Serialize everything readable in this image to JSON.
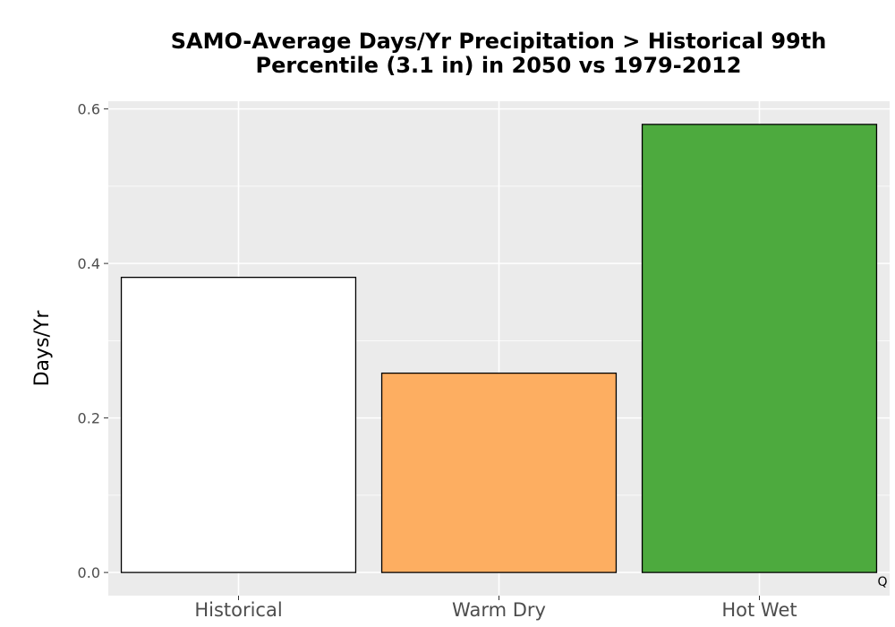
{
  "chart_data": {
    "type": "bar",
    "title_lines": [
      "SAMO-Average Days/Yr Precipitation > Historical 99th",
      "Percentile (3.1 in) in 2050 vs 1979-2012"
    ],
    "xlabel": "",
    "ylabel": "Days/Yr",
    "categories": [
      "Historical",
      "Warm Dry",
      "Hot Wet"
    ],
    "values": [
      0.382,
      0.258,
      0.58
    ],
    "bar_colors": [
      "#FFFFFF",
      "#FDAE61",
      "#4DAA3E"
    ],
    "bar_outline": "#000000",
    "ylim": [
      -0.03,
      0.61
    ],
    "yticks": [
      0.0,
      0.2,
      0.4,
      0.6
    ],
    "ytick_labels": [
      "0.0",
      "0.2",
      "0.4",
      "0.6"
    ],
    "grid": true,
    "panel_background": "#EBEBEB",
    "gridline_color": "#FFFFFF",
    "corner_note": "Q"
  }
}
